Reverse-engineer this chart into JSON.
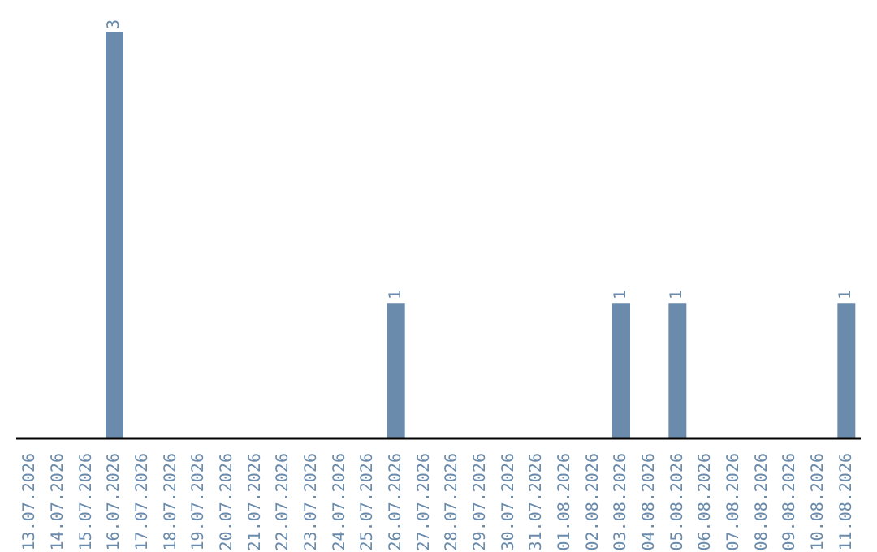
{
  "chart_data": {
    "type": "bar",
    "categories": [
      "13.07.2026",
      "14.07.2026",
      "15.07.2026",
      "16.07.2026",
      "17.07.2026",
      "18.07.2026",
      "19.07.2026",
      "20.07.2026",
      "21.07.2026",
      "22.07.2026",
      "23.07.2026",
      "24.07.2026",
      "25.07.2026",
      "26.07.2026",
      "27.07.2026",
      "28.07.2026",
      "29.07.2026",
      "30.07.2026",
      "31.07.2026",
      "01.08.2026",
      "02.08.2026",
      "03.08.2026",
      "04.08.2026",
      "05.08.2026",
      "06.08.2026",
      "07.08.2026",
      "08.08.2026",
      "09.08.2026",
      "10.08.2026",
      "11.08.2026"
    ],
    "values": [
      0,
      0,
      0,
      3,
      0,
      0,
      0,
      0,
      0,
      0,
      0,
      0,
      0,
      1,
      0,
      0,
      0,
      0,
      0,
      0,
      0,
      1,
      0,
      1,
      0,
      0,
      0,
      0,
      0,
      1
    ],
    "value_labels": [
      null,
      null,
      null,
      "3",
      null,
      null,
      null,
      null,
      null,
      null,
      null,
      null,
      null,
      "1",
      null,
      null,
      null,
      null,
      null,
      null,
      null,
      "1",
      null,
      "1",
      null,
      null,
      null,
      null,
      null,
      "1"
    ],
    "color": "#6a8bab",
    "tick_labels": "x"
  }
}
